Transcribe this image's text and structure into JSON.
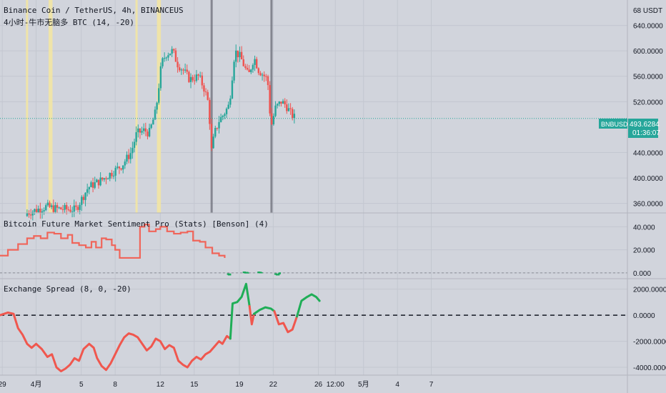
{
  "colors": {
    "background": "#d1d4dc",
    "grid": "#c3c7d0",
    "up": "#26a69a",
    "down": "#ef5350",
    "text": "#131722",
    "axis_text": "#131722",
    "highlight_yellow": "#f5e6a0",
    "highlight_gray": "#6b6e78",
    "sentiment": "#f0655a",
    "sentiment_pos": "#1aa85c",
    "spread_neg": "#f0574e",
    "spread_pos": "#1fae57",
    "price_tag_bg": "#26a69a"
  },
  "main_pane": {
    "title": "Binance Coin / TetherUS, 4h, BINANCEUS",
    "indicator_label": "4小时-牛市无脑多 BTC (14, -20)",
    "currency_label": "68 USDT",
    "price_ticks": [
      {
        "label": "640.0000",
        "value": 640
      },
      {
        "label": "600.0000",
        "value": 600
      },
      {
        "label": "560.0000",
        "value": 560
      },
      {
        "label": "520.0000",
        "value": 520
      },
      {
        "label": "440.0000",
        "value": 440
      },
      {
        "label": "400.0000",
        "value": 400
      },
      {
        "label": "360.0000",
        "value": 360
      }
    ],
    "symbol_tag": "BNBUSDT",
    "last_price": "493.6284",
    "countdown": "01:36:07"
  },
  "sentiment_pane": {
    "title": "Bitcoin Future Market Sentiment Pro (Stats) [Benson] (4)",
    "ticks": [
      {
        "label": "40.000",
        "value": 40
      },
      {
        "label": "20.000",
        "value": 20
      },
      {
        "label": "0.000",
        "value": 0
      }
    ]
  },
  "spread_pane": {
    "title": "Exchange Spread (8, 0, -20)",
    "ticks": [
      {
        "label": "2000.0000",
        "value": 2000
      },
      {
        "label": "0.0000",
        "value": 0
      },
      {
        "label": "-2000.0000",
        "value": -2000
      },
      {
        "label": "-4000.0000",
        "value": -4000
      }
    ]
  },
  "time_axis": [
    {
      "label": "29",
      "pos": 29
    },
    {
      "label": "4月",
      "pos": 32
    },
    {
      "label": "5",
      "pos": 36
    },
    {
      "label": "8",
      "pos": 39
    },
    {
      "label": "12",
      "pos": 43
    },
    {
      "label": "15",
      "pos": 46
    },
    {
      "label": "19",
      "pos": 50
    },
    {
      "label": "22",
      "pos": 53
    },
    {
      "label": "26",
      "pos": 57
    },
    {
      "label": "12:00",
      "pos": 58.5
    },
    {
      "label": "5月",
      "pos": 61
    },
    {
      "label": "4",
      "pos": 64
    },
    {
      "label": "7",
      "pos": 67
    }
  ],
  "chart_data": [
    {
      "type": "candlestick",
      "title": "Binance Coin / TetherUS, 4h, BINANCEUS",
      "ylim": [
        345,
        680
      ],
      "highlight_yellow_days": [
        [
          31.1,
          31.2
        ],
        [
          33.1,
          33.45
        ],
        [
          40.8,
          40.95
        ],
        [
          42.7,
          43.05
        ]
      ],
      "highlight_gray_days": [
        [
          47.45,
          47.55
        ],
        [
          52.75,
          52.85
        ]
      ],
      "anchors": [
        [
          28.8,
          340
        ],
        [
          31.2,
          345
        ],
        [
          32.9,
          355
        ],
        [
          33.6,
          352
        ],
        [
          35.5,
          350
        ],
        [
          36.6,
          385
        ],
        [
          37.9,
          398
        ],
        [
          39.6,
          420
        ],
        [
          40.4,
          440
        ],
        [
          40.9,
          470
        ],
        [
          41.6,
          475
        ],
        [
          42.0,
          470
        ],
        [
          42.6,
          505
        ],
        [
          42.9,
          550
        ],
        [
          43.1,
          580
        ],
        [
          43.5,
          595
        ],
        [
          44.1,
          600
        ],
        [
          44.5,
          580
        ],
        [
          45.0,
          570
        ],
        [
          45.6,
          555
        ],
        [
          46.4,
          560
        ],
        [
          46.9,
          540
        ],
        [
          47.3,
          515
        ],
        [
          47.5,
          440
        ],
        [
          47.8,
          470
        ],
        [
          48.2,
          490
        ],
        [
          48.6,
          500
        ],
        [
          49.1,
          515
        ],
        [
          49.6,
          600
        ],
        [
          50.1,
          590
        ],
        [
          50.8,
          560
        ],
        [
          51.3,
          590
        ],
        [
          51.7,
          570
        ],
        [
          52.5,
          555
        ],
        [
          52.8,
          480
        ],
        [
          53.2,
          510
        ],
        [
          53.7,
          520
        ],
        [
          54.1,
          515
        ],
        [
          54.6,
          500
        ],
        [
          55.0,
          493
        ]
      ],
      "last": 493.6284
    },
    {
      "type": "line",
      "title": "Bitcoin Future Market Sentiment Pro (Stats) [Benson] (4)",
      "ylim": [
        -5,
        52
      ],
      "step": true,
      "series": [
        {
          "values": [
            [
              28.8,
              15
            ],
            [
              29.5,
              20
            ],
            [
              30.4,
              25
            ],
            [
              31.2,
              30
            ],
            [
              31.8,
              32
            ],
            [
              32.4,
              30
            ],
            [
              33.0,
              35
            ],
            [
              33.6,
              34
            ],
            [
              34.2,
              30
            ],
            [
              34.8,
              33
            ],
            [
              35.2,
              26
            ],
            [
              35.8,
              24
            ],
            [
              36.4,
              22
            ],
            [
              36.9,
              27
            ],
            [
              37.3,
              22
            ],
            [
              37.8,
              30
            ],
            [
              38.2,
              29
            ],
            [
              38.7,
              24
            ],
            [
              39.0,
              20
            ],
            [
              39.4,
              13
            ],
            [
              41.2,
              40
            ],
            [
              41.6,
              42
            ],
            [
              42.0,
              36
            ],
            [
              42.6,
              38
            ],
            [
              43.0,
              40
            ],
            [
              43.6,
              36
            ],
            [
              44.2,
              34
            ],
            [
              44.8,
              35
            ],
            [
              45.4,
              36
            ],
            [
              45.9,
              28
            ],
            [
              46.5,
              27
            ],
            [
              47.0,
              22
            ],
            [
              47.6,
              17
            ],
            [
              48.2,
              15
            ],
            [
              48.7,
              13
            ]
          ]
        },
        {
          "values": [
            [
              48.9,
              -1
            ],
            [
              49.05,
              -1.5
            ],
            [
              49.2,
              -0.5
            ]
          ]
        },
        {
          "values": [
            [
              50.3,
              0.5
            ],
            [
              50.5,
              0.2
            ],
            [
              50.8,
              0.4
            ]
          ]
        },
        {
          "values": [
            [
              51.6,
              0.5
            ],
            [
              51.8,
              0.3
            ],
            [
              52.0,
              0.6
            ]
          ]
        },
        {
          "values": [
            [
              53.1,
              -1
            ],
            [
              53.3,
              -1.5
            ],
            [
              53.5,
              -0.5
            ],
            [
              53.6,
              0.5
            ]
          ]
        }
      ],
      "reference_line": 0
    },
    {
      "type": "line",
      "title": "Exchange Spread (8, 0, -20)",
      "ylim": [
        -4600,
        2800
      ],
      "series": [
        {
          "name": "",
          "values": [
            [
              28.8,
              0
            ],
            [
              29.5,
              200
            ],
            [
              30.0,
              100
            ],
            [
              30.4,
              -1000
            ],
            [
              30.8,
              -1500
            ],
            [
              31.2,
              -2200
            ],
            [
              31.6,
              -2500
            ],
            [
              32.0,
              -2200
            ],
            [
              32.5,
              -2600
            ],
            [
              33.0,
              -3200
            ],
            [
              33.4,
              -3000
            ],
            [
              33.8,
              -4000
            ],
            [
              34.2,
              -4300
            ],
            [
              34.6,
              -4100
            ],
            [
              35.0,
              -3800
            ],
            [
              35.4,
              -3300
            ],
            [
              35.8,
              -3500
            ],
            [
              36.2,
              -2600
            ],
            [
              36.7,
              -2200
            ],
            [
              37.1,
              -2500
            ],
            [
              37.4,
              -3300
            ],
            [
              37.8,
              -3900
            ],
            [
              38.2,
              -4200
            ],
            [
              38.6,
              -3700
            ],
            [
              39.0,
              -3000
            ],
            [
              39.4,
              -2300
            ],
            [
              39.8,
              -1700
            ],
            [
              40.2,
              -1400
            ],
            [
              40.6,
              -1500
            ],
            [
              41.0,
              -1700
            ],
            [
              41.4,
              -2200
            ],
            [
              41.8,
              -2700
            ],
            [
              42.2,
              -2400
            ],
            [
              42.6,
              -1800
            ],
            [
              43.0,
              -2000
            ],
            [
              43.4,
              -2600
            ],
            [
              43.8,
              -2300
            ],
            [
              44.2,
              -2500
            ],
            [
              44.6,
              -3500
            ],
            [
              45.0,
              -3800
            ],
            [
              45.4,
              -4000
            ],
            [
              45.8,
              -3500
            ],
            [
              46.2,
              -3200
            ],
            [
              46.6,
              -3400
            ],
            [
              47.0,
              -3000
            ],
            [
              47.4,
              -2800
            ],
            [
              47.8,
              -2400
            ],
            [
              48.2,
              -2000
            ],
            [
              48.5,
              -2200
            ],
            [
              48.9,
              -1600
            ],
            [
              49.2,
              -1800
            ]
          ]
        },
        {
          "name": "",
          "values": [
            [
              49.2,
              -1800
            ],
            [
              49.4,
              900
            ],
            [
              49.8,
              1000
            ],
            [
              50.2,
              1400
            ],
            [
              50.6,
              2400
            ],
            [
              50.9,
              700
            ]
          ]
        },
        {
          "name": "",
          "values": [
            [
              50.9,
              700
            ],
            [
              51.1,
              -700
            ],
            [
              51.3,
              100
            ]
          ]
        },
        {
          "name": "",
          "values": [
            [
              51.3,
              100
            ],
            [
              51.8,
              400
            ],
            [
              52.3,
              600
            ],
            [
              52.8,
              500
            ],
            [
              53.1,
              300
            ]
          ]
        },
        {
          "name": "",
          "values": [
            [
              53.1,
              300
            ],
            [
              53.5,
              -700
            ],
            [
              53.9,
              -600
            ],
            [
              54.3,
              -1300
            ],
            [
              54.7,
              -1100
            ],
            [
              55.1,
              -100
            ]
          ]
        },
        {
          "name": "",
          "values": [
            [
              55.1,
              -100
            ],
            [
              55.5,
              1100
            ],
            [
              56.0,
              1400
            ],
            [
              56.4,
              1600
            ],
            [
              56.8,
              1400
            ],
            [
              57.1,
              1100
            ]
          ]
        }
      ],
      "series_colors": [
        "spread_neg",
        "spread_pos",
        "spread_neg",
        "spread_pos",
        "spread_neg",
        "spread_pos"
      ],
      "reference_line": 0
    }
  ]
}
